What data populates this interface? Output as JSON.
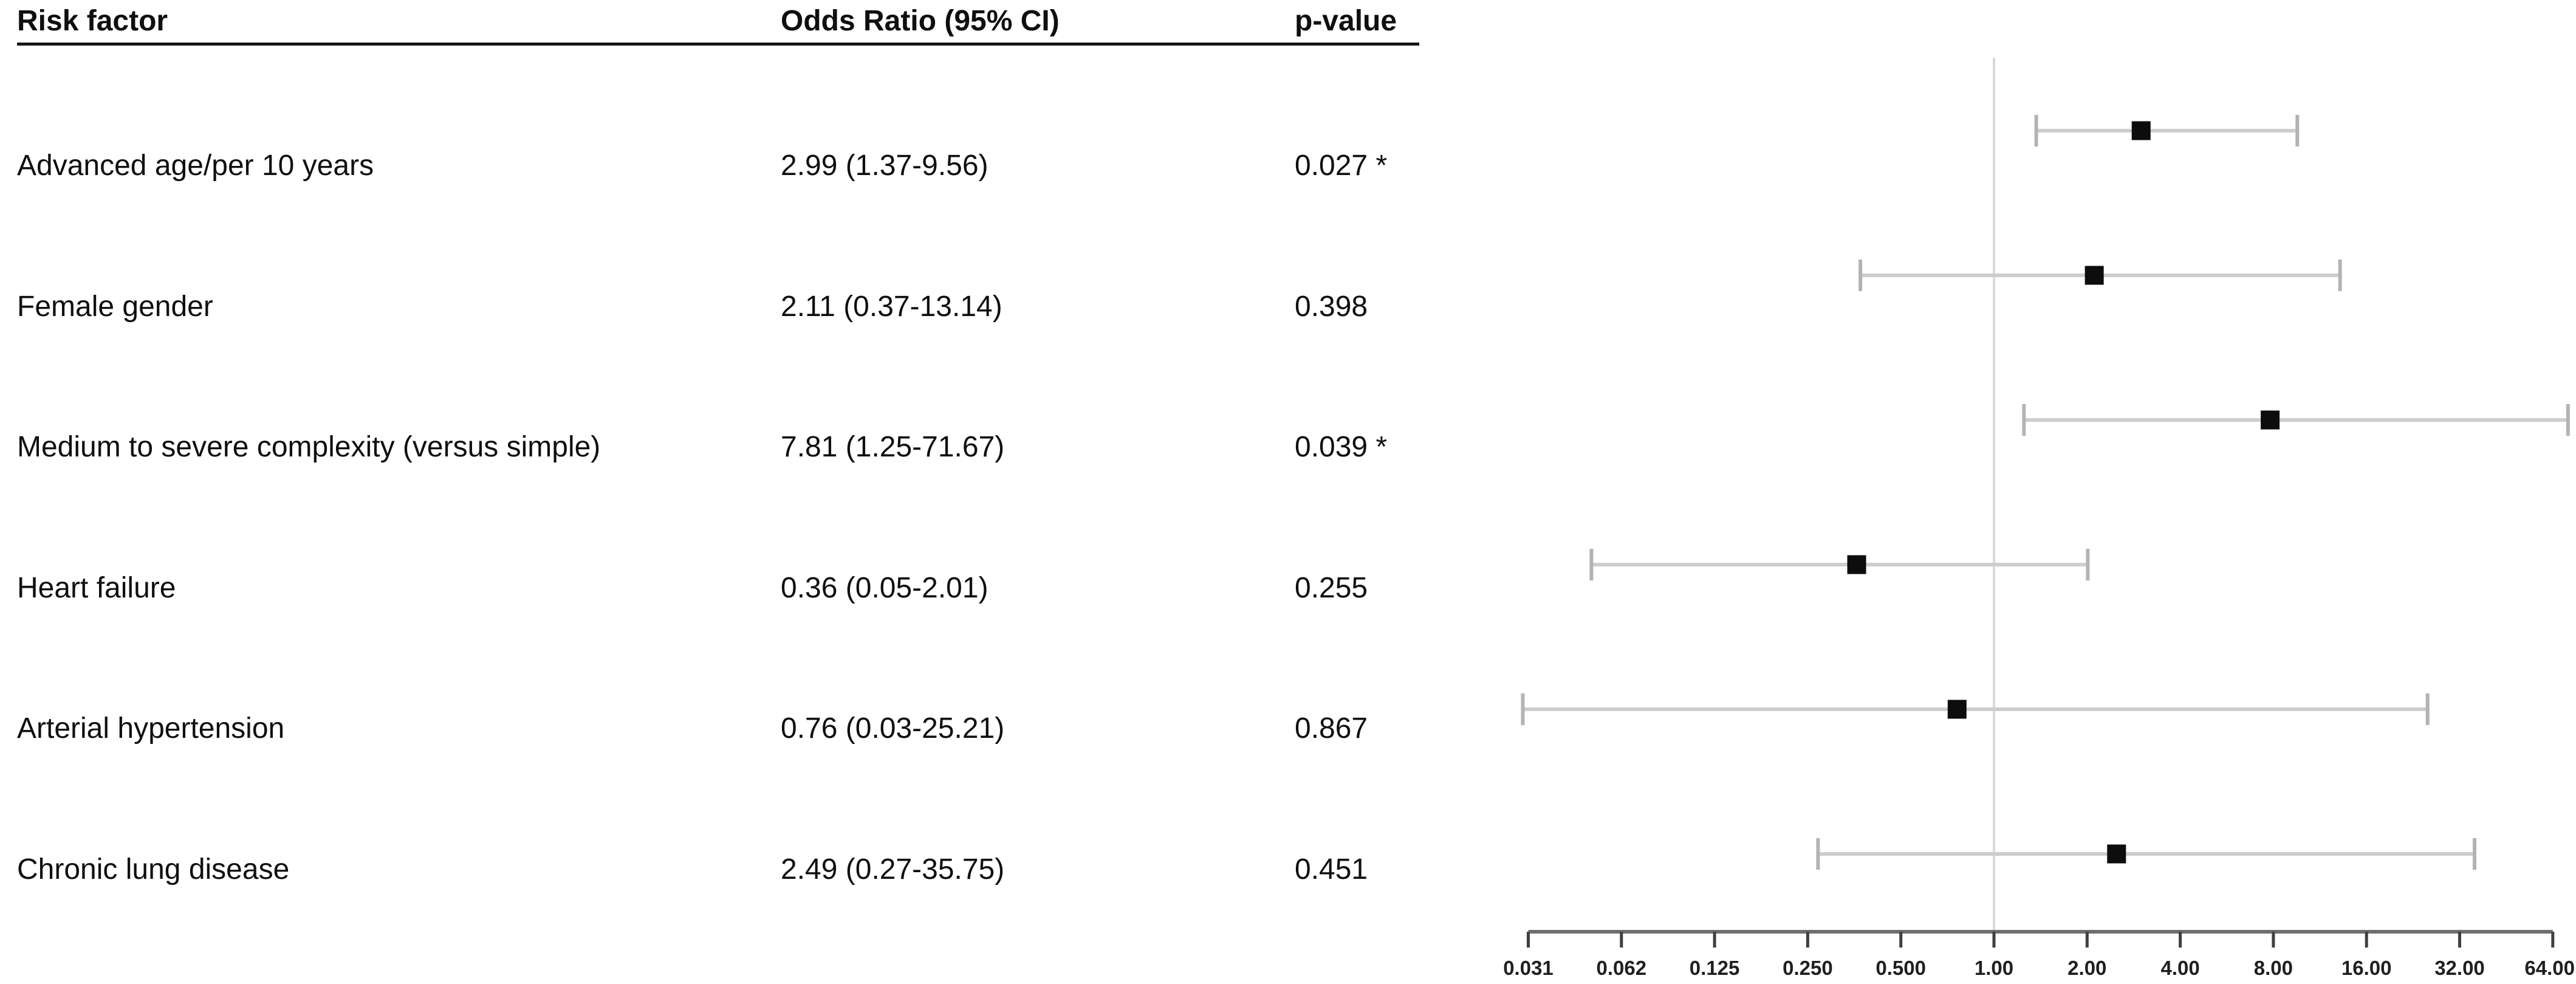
{
  "table": {
    "headers": {
      "risk_factor": "Risk factor",
      "odds_ratio": "Odds Ratio (95% CI)",
      "p_value": "p-value"
    },
    "rows": [
      {
        "risk_factor": "Advanced age/per 10 years",
        "odds_ratio": "2.99 (1.37-9.56)",
        "p_value": "0.027 *"
      },
      {
        "risk_factor": "Female gender",
        "odds_ratio": "2.11 (0.37-13.14)",
        "p_value": "0.398"
      },
      {
        "risk_factor": "Medium to severe complexity (versus simple)",
        "odds_ratio": "7.81 (1.25-71.67)",
        "p_value": "0.039 *"
      },
      {
        "risk_factor": "Heart failure",
        "odds_ratio": "0.36 (0.05-2.01)",
        "p_value": "0.255"
      },
      {
        "risk_factor": "Arterial hypertension",
        "odds_ratio": "0.76 (0.03-25.21)",
        "p_value": "0.867"
      },
      {
        "risk_factor": "Chronic lung disease",
        "odds_ratio": "2.49 (0.27-35.75)",
        "p_value": "0.451"
      }
    ]
  },
  "chart_data": {
    "type": "scatter",
    "subtype": "forest-plot",
    "title": "",
    "xlabel": "",
    "ylabel": "",
    "x_scale": "log2",
    "xlim": [
      0.031,
      64
    ],
    "grid": false,
    "legend_position": "none",
    "reference_line": 1.0,
    "x_ticks": [
      0.03125,
      0.0625,
      0.125,
      0.25,
      0.5,
      1,
      2,
      4,
      8,
      16,
      32,
      64
    ],
    "x_tick_labels": [
      "0.031",
      "0.062",
      "0.125",
      "0.250",
      "0.500",
      "1.00",
      "2.00",
      "4.00",
      "8.00",
      "16.00",
      "32.00",
      "64.00"
    ],
    "series": [
      {
        "name": "Odds Ratio (95% CI)",
        "marker": "black-square",
        "points": [
          {
            "label": "Advanced age/per 10 years",
            "or": 2.99,
            "ci_low": 1.37,
            "ci_high": 9.56,
            "p_value": 0.027,
            "significant": true
          },
          {
            "label": "Female gender",
            "or": 2.11,
            "ci_low": 0.37,
            "ci_high": 13.14,
            "p_value": 0.398,
            "significant": false
          },
          {
            "label": "Medium to severe complexity (versus simple)",
            "or": 7.81,
            "ci_low": 1.25,
            "ci_high": 71.67,
            "p_value": 0.039,
            "significant": true
          },
          {
            "label": "Heart failure",
            "or": 0.36,
            "ci_low": 0.05,
            "ci_high": 2.01,
            "p_value": 0.255,
            "significant": false
          },
          {
            "label": "Arterial hypertension",
            "or": 0.76,
            "ci_low": 0.03,
            "ci_high": 25.21,
            "p_value": 0.867,
            "significant": false
          },
          {
            "label": "Chronic lung disease",
            "or": 2.49,
            "ci_low": 0.27,
            "ci_high": 35.75,
            "p_value": 0.451,
            "significant": false
          }
        ]
      }
    ]
  },
  "colors": {
    "background": "#ffffff",
    "text": "#0f0f0f",
    "header_underline": "#141414",
    "marker": "#0d0d0d",
    "ci_line": "#cdcdcd",
    "ci_cap": "#b3b3b3",
    "reference_line": "#d9d9d9",
    "axis_line": "#6e6e6e",
    "tick": "#3f3f3f",
    "tick_label": "#1f1f1f"
  }
}
